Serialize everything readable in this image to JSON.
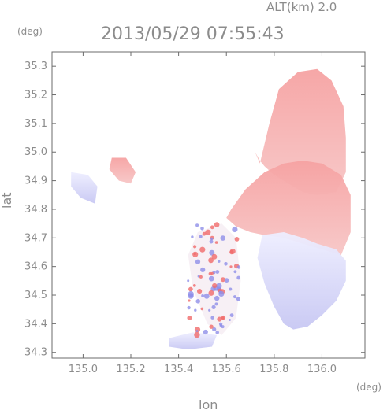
{
  "header": {
    "altitude": "ALT(km) 2.0",
    "timestamp": "2013/05/29 07:55:43"
  },
  "colors": {
    "approaching": "#8f8fe8",
    "receding": "#f06a6a",
    "text": "#8c8c8c",
    "frame": "#6b6b6b"
  },
  "chart_data": {
    "type": "heatmap",
    "title": "2013/05/29 07:55:43",
    "subtitle": "ALT(km) 2.0",
    "xlabel": "lon",
    "ylabel": "lat",
    "x_unit": "(deg)",
    "y_unit": "(deg)",
    "xlim": [
      134.87,
      136.18
    ],
    "ylim": [
      34.28,
      35.35
    ],
    "xticks": [
      135.0,
      135.2,
      135.4,
      135.6,
      135.8,
      136.0
    ],
    "xtick_labels": [
      "135.0",
      "135.2",
      "135.4",
      "135.6",
      "135.8",
      "136.0"
    ],
    "yticks": [
      34.3,
      34.4,
      34.5,
      34.6,
      34.7,
      34.8,
      34.9,
      35.0,
      35.1,
      35.2,
      35.3
    ],
    "ytick_labels": [
      "34.3",
      "34.4",
      "34.5",
      "34.6",
      "34.7",
      "34.8",
      "34.9",
      "35.0",
      "35.1",
      "35.2",
      "35.3"
    ],
    "grid": false,
    "regions": [
      {
        "name": "north-main-echo",
        "sign": "receding",
        "lon": [
          135.74,
          135.78,
          135.82,
          135.9,
          135.98,
          136.04,
          136.09,
          136.1,
          136.1,
          136.06,
          135.98,
          135.92,
          135.86,
          135.8,
          135.76,
          135.74,
          135.72
        ],
        "lat": [
          34.96,
          35.1,
          35.22,
          35.28,
          35.29,
          35.25,
          35.16,
          35.05,
          34.93,
          34.86,
          34.85,
          34.86,
          34.89,
          34.92,
          34.95,
          34.97,
          35.0
        ]
      },
      {
        "name": "central-east-echo",
        "sign": "receding",
        "lon": [
          135.62,
          135.68,
          135.76,
          135.84,
          135.92,
          136.0,
          136.08,
          136.12,
          136.12,
          136.08,
          136.0,
          135.92,
          135.84,
          135.76,
          135.7,
          135.64,
          135.6
        ],
        "lat": [
          34.8,
          34.87,
          34.93,
          34.96,
          34.97,
          34.96,
          34.92,
          34.85,
          34.72,
          34.64,
          34.66,
          34.68,
          34.7,
          34.71,
          34.72,
          34.74,
          34.77
        ]
      },
      {
        "name": "southeast-echo",
        "sign": "approaching",
        "lon": [
          135.75,
          135.84,
          135.92,
          135.98,
          136.06,
          136.1,
          136.1,
          136.06,
          136.0,
          135.94,
          135.88,
          135.84,
          135.8,
          135.76,
          135.73
        ],
        "lat": [
          34.71,
          34.72,
          34.7,
          34.68,
          34.66,
          34.62,
          34.55,
          34.48,
          34.43,
          34.39,
          34.38,
          34.4,
          34.46,
          34.54,
          34.63
        ]
      },
      {
        "name": "north-fragment",
        "sign": "receding",
        "lon": [
          135.12,
          135.18,
          135.22,
          135.2,
          135.15,
          135.11
        ],
        "lat": [
          34.98,
          34.98,
          34.93,
          34.89,
          34.9,
          34.94
        ]
      },
      {
        "name": "northwest-fragment",
        "sign": "approaching",
        "lon": [
          134.95,
          135.02,
          135.06,
          135.05,
          134.99,
          134.95
        ],
        "lat": [
          34.93,
          34.92,
          34.88,
          34.82,
          34.84,
          34.88
        ]
      },
      {
        "name": "central-scatter",
        "sign": "mixed",
        "lon": [
          135.48,
          135.58,
          135.64,
          135.66,
          135.64,
          135.58,
          135.52,
          135.46,
          135.44
        ],
        "lat": [
          34.72,
          34.75,
          34.7,
          34.55,
          34.42,
          34.36,
          34.4,
          34.52,
          34.64
        ]
      },
      {
        "name": "southwest-fragment",
        "sign": "approaching",
        "lon": [
          135.36,
          135.46,
          135.56,
          135.54,
          135.44,
          135.36
        ],
        "lat": [
          34.35,
          34.37,
          34.36,
          34.32,
          34.31,
          34.32
        ]
      }
    ]
  }
}
